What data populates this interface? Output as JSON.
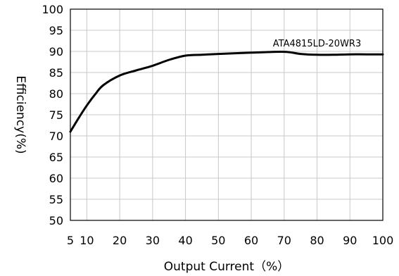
{
  "chart_data": {
    "type": "line",
    "title": "",
    "xlabel": "Output Current（%）",
    "ylabel": "Efficiency(%)",
    "xlim": [
      5,
      100
    ],
    "ylim": [
      50,
      100
    ],
    "x_ticks": [
      5,
      10,
      20,
      30,
      40,
      50,
      60,
      70,
      80,
      90,
      100
    ],
    "y_ticks": [
      50,
      55,
      60,
      65,
      70,
      75,
      80,
      85,
      90,
      95,
      100
    ],
    "grid": true,
    "series": [
      {
        "name": "",
        "x": [
          5,
          7.5,
          10,
          12.5,
          15,
          20,
          25,
          30,
          35,
          40,
          45,
          50,
          60,
          70,
          75,
          80,
          85,
          90,
          95,
          100
        ],
        "y": [
          71,
          74.2,
          77.2,
          79.8,
          82.0,
          84.3,
          85.5,
          86.6,
          88.0,
          89.0,
          89.2,
          89.4,
          89.7,
          89.9,
          89.4,
          89.2,
          89.2,
          89.3,
          89.3,
          89.3
        ]
      }
    ],
    "annotations": [
      {
        "text": "ATA4815LD-20WR3",
        "x": 80,
        "y": 92
      }
    ]
  }
}
